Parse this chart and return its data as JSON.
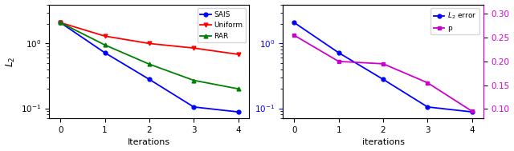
{
  "left": {
    "iterations": [
      0,
      1,
      2,
      3,
      4
    ],
    "sais": [
      2.1,
      0.72,
      0.28,
      0.105,
      0.088
    ],
    "uniform": [
      2.1,
      1.3,
      1.0,
      0.85,
      0.68
    ],
    "rar": [
      2.1,
      0.95,
      0.48,
      0.27,
      0.2
    ],
    "sais_color": "#0000ff",
    "uniform_color": "#ff0000",
    "rar_color": "#008000",
    "xlabel": "Iterations",
    "ylabel": "$L_2$",
    "ylim": [
      0.07,
      4.0
    ],
    "xlim": [
      -0.25,
      4.25
    ]
  },
  "right": {
    "iterations": [
      0,
      1,
      2,
      3,
      4
    ],
    "l2_error": [
      2.1,
      0.72,
      0.28,
      0.105,
      0.088
    ],
    "p": [
      0.255,
      0.2,
      0.195,
      0.155,
      0.095
    ],
    "l2_color": "#0000ff",
    "p_color": "#cc00cc",
    "xlabel": "iterations",
    "ylim_left": [
      0.07,
      4.0
    ],
    "ylim_right": [
      0.08,
      0.32
    ],
    "yticks_right": [
      0.1,
      0.15,
      0.2,
      0.25,
      0.3
    ],
    "ytick_right_labels": [
      "0.10",
      "0.15",
      "0.20",
      "0.25",
      "0.30"
    ],
    "xlim": [
      -0.25,
      4.25
    ]
  },
  "fig_width": 6.4,
  "fig_height": 1.89,
  "dpi": 100
}
